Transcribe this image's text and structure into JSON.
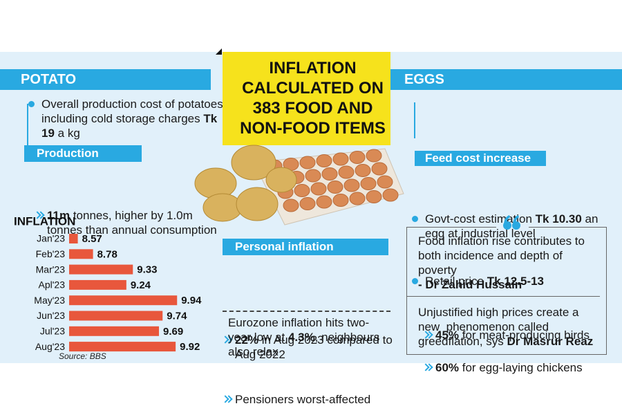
{
  "title": "INFLATION CALCULATED ON 383 FOOD AND NON-FOOD ITEMS",
  "potato": {
    "header": "POTATO",
    "cost": [
      {
        "text": "Overall production cost of potatoes including cold storage charges "
      },
      {
        "text": "Tk 19",
        "bold": true
      },
      {
        "text": " a kg"
      }
    ],
    "production_header": "Production",
    "production": [
      {
        "text": "11m",
        "bold": true
      },
      {
        "text": " tonnes, higher by 1.0m tonnes than annual consumption"
      }
    ]
  },
  "personal": {
    "header": "Personal inflation",
    "items": [
      [
        {
          "text": "22%",
          "bold": true
        },
        {
          "text": " in Aug 2023 compared to Aug 2022"
        }
      ],
      [
        {
          "text": "Pensioners worst-affected"
        }
      ]
    ]
  },
  "eurozone": [
    {
      "text": "Eurozone inflation hits two-year low at "
    },
    {
      "text": "4.3%",
      "bold": true
    },
    {
      "text": ", neighbours also relax"
    }
  ],
  "eggs": {
    "header": "EGGS",
    "items": [
      [
        {
          "text": "Govt-cost estimation "
        },
        {
          "text": "Tk 10.30",
          "bold": true
        },
        {
          "text": " an egg at industrial level"
        }
      ],
      [
        {
          "text": "Retail price "
        },
        {
          "text": "Tk 12.5-13",
          "bold": true
        }
      ]
    ],
    "feed_header": "Feed cost increase",
    "feed": [
      [
        {
          "text": "45%",
          "bold": true
        },
        {
          "text": " for meat-producing birds"
        }
      ],
      [
        {
          "text": "60%",
          "bold": true
        },
        {
          "text": " for egg-laying chickens"
        }
      ]
    ]
  },
  "quotes": [
    [
      {
        "text": "Food inflation rise contributes to both incidence and depth of poverty"
      },
      {
        "text": "- Dr Zahid Hussain",
        "bold": true,
        "block": true
      }
    ],
    [
      {
        "text": "Unjustified high prices create a new  phenomenon called greedflation, sys "
      },
      {
        "text": "Dr Masrur Reaz",
        "bold": true
      }
    ]
  ],
  "chart_data": {
    "type": "bar",
    "orientation": "horizontal",
    "title": "INFLATION",
    "categories": [
      "Jan'23",
      "Feb'23",
      "Mar'23",
      "Apl'23",
      "May'23",
      "Jun'23",
      "Jul'23",
      "Aug'23"
    ],
    "values": [
      8.57,
      8.78,
      9.33,
      9.24,
      9.94,
      9.74,
      9.69,
      9.92
    ],
    "color": "#e8573c",
    "xlim": [
      8.45,
      10.1
    ],
    "source": "Source: BBS"
  }
}
